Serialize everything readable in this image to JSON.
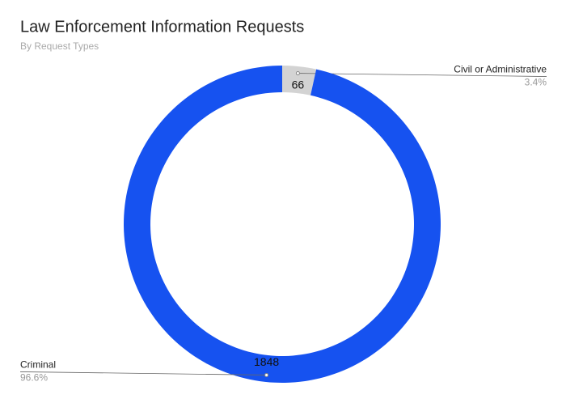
{
  "chart_data": {
    "type": "donut",
    "title": "Law Enforcement Information Requests",
    "subtitle": "By Request Types",
    "categories": [
      "Civil or Administrative",
      "Criminal"
    ],
    "values": [
      66,
      1848
    ],
    "percentages": [
      {
        "value": 3.4,
        "label": "3.4%"
      },
      {
        "value": 96.6,
        "label": "96.6%"
      }
    ],
    "colors": [
      "#d3d3d3",
      "#1652f0"
    ]
  }
}
